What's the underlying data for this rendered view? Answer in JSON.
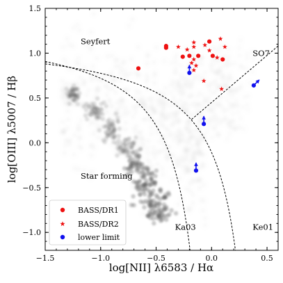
{
  "chart_data": {
    "type": "scatter",
    "xlabel": "log[NII] λ6583 / Hα",
    "ylabel": "log[OIII] λ5007 / Hβ",
    "xlim": [
      -1.5,
      0.6
    ],
    "ylim": [
      -1.2,
      1.5
    ],
    "xticks": [
      -1.5,
      -1.0,
      -0.5,
      0.0,
      0.5
    ],
    "xtick_labels": [
      "−1.5",
      "−1.0",
      "−0.5",
      "0.0",
      "0.5"
    ],
    "yticks": [
      -1.0,
      -0.5,
      0.0,
      0.5,
      1.0,
      1.5
    ],
    "ytick_labels": [
      "−1.0",
      "−0.5",
      "0.0",
      "0.5",
      "1.0",
      "1.5"
    ],
    "grid": false,
    "legend_position": "lower-left",
    "region_labels": [
      {
        "text": "Seyfert",
        "x": -1.18,
        "y": 1.1
      },
      {
        "text": "SO7",
        "x": 0.37,
        "y": 0.97
      },
      {
        "text": "Star forming",
        "x": -1.18,
        "y": -0.4
      },
      {
        "text": "Ka03",
        "x": -0.33,
        "y": -0.97
      },
      {
        "text": "Ke01",
        "x": 0.37,
        "y": -0.97
      }
    ],
    "series": [
      {
        "name": "BASS/DR1",
        "marker": "circle",
        "color": "#ee1111",
        "points": [
          [
            -0.66,
            0.83
          ],
          [
            -0.41,
            1.08
          ],
          [
            -0.41,
            1.06
          ],
          [
            -0.26,
            0.96
          ],
          [
            -0.2,
            0.97
          ],
          [
            -0.12,
            0.97
          ],
          [
            -0.02,
            1.13
          ],
          [
            0.01,
            0.97
          ],
          [
            0.1,
            0.93
          ]
        ]
      },
      {
        "name": "BASS/DR2",
        "marker": "star",
        "color": "#ee1111",
        "points": [
          [
            -0.3,
            1.07
          ],
          [
            -0.22,
            1.04
          ],
          [
            -0.16,
            1.12
          ],
          [
            -0.16,
            1.07
          ],
          [
            -0.06,
            1.09
          ],
          [
            0.08,
            1.16
          ],
          [
            -0.02,
            1.03
          ],
          [
            0.12,
            1.07
          ],
          [
            -0.16,
            0.93
          ],
          [
            -0.18,
            0.89
          ],
          [
            -0.14,
            0.86
          ],
          [
            -0.16,
            0.81
          ],
          [
            -0.07,
            0.69
          ],
          [
            0.05,
            0.95
          ],
          [
            0.09,
            0.6
          ]
        ]
      },
      {
        "name": "lower limit",
        "marker": "circle-arrow",
        "color": "#1111ee",
        "points": [
          {
            "x": -0.2,
            "y": 0.78,
            "direction": "up"
          },
          {
            "x": -0.07,
            "y": 0.21,
            "direction": "up"
          },
          {
            "x": -0.14,
            "y": -0.31,
            "direction": "up"
          },
          {
            "x": 0.38,
            "y": 0.64,
            "direction": "up-right"
          }
        ]
      }
    ],
    "demarcation_lines": [
      {
        "name": "Ka03",
        "style": "dashed",
        "formula": "y = 0.61/(x - 0.05) + 1.3"
      },
      {
        "name": "Ke01",
        "style": "dashed",
        "formula": "y = 0.61/(x - 0.47) + 1.19"
      },
      {
        "name": "SO7",
        "style": "dashed",
        "formula": "y = 1.05x + 0.45"
      }
    ],
    "background": "grey density of SDSS galaxies"
  }
}
